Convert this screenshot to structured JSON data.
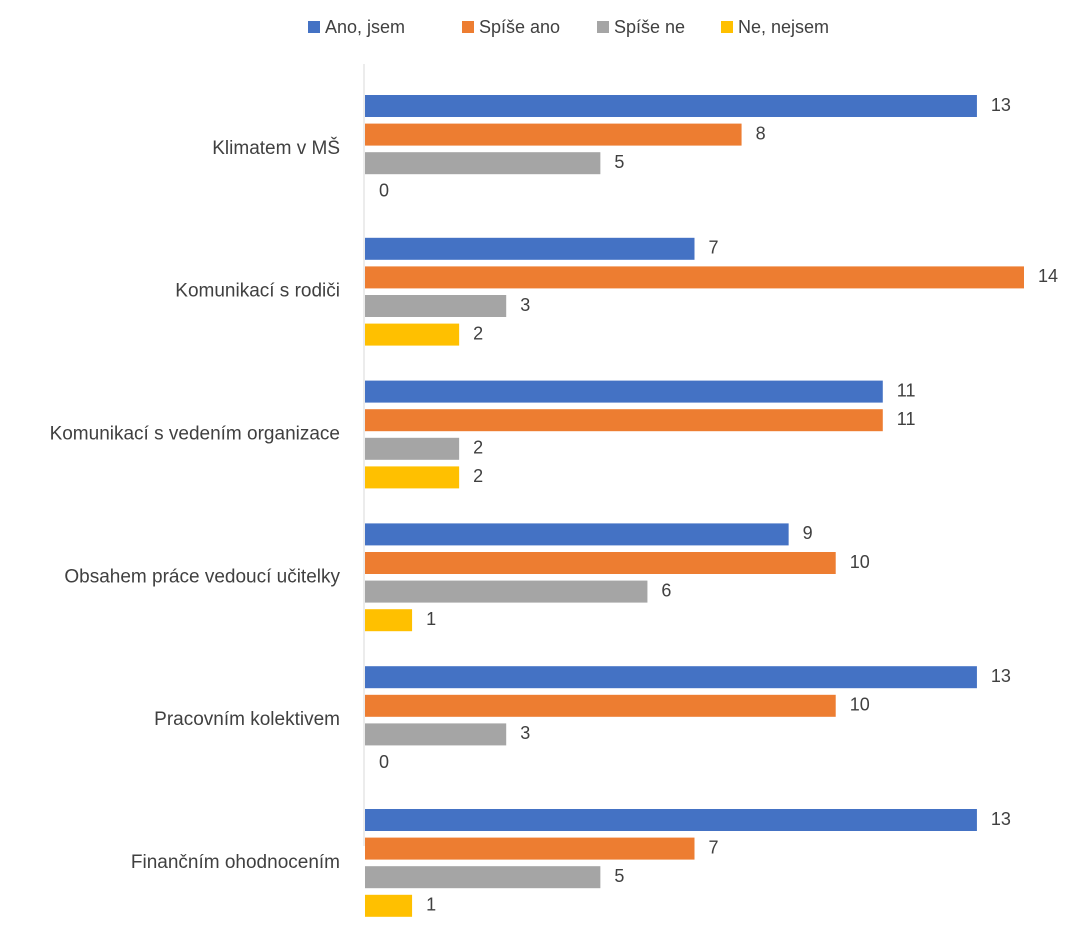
{
  "chart_data": {
    "type": "bar",
    "orientation": "horizontal",
    "categories": [
      "Klimatem v MŠ",
      "Komunikací s rodiči",
      "Komunikací s vedením organizace",
      "Obsahem práce vedoucí učitelky",
      "Pracovním kolektivem",
      "Finančním ohodnocením"
    ],
    "series": [
      {
        "name": "Ano, jsem",
        "color": "#4472C4",
        "values": [
          13,
          7,
          11,
          9,
          13,
          13
        ]
      },
      {
        "name": "Spíše ano",
        "color": "#ED7D31",
        "values": [
          8,
          14,
          11,
          10,
          10,
          7
        ]
      },
      {
        "name": "Spíše ne",
        "color": "#A5A5A5",
        "values": [
          5,
          3,
          2,
          6,
          3,
          5
        ]
      },
      {
        "name": "Ne, nejsem",
        "color": "#FFC000",
        "values": [
          0,
          2,
          2,
          1,
          0,
          1
        ]
      }
    ],
    "xlim": [
      0,
      14
    ],
    "legend_position": "top",
    "data_labels": true,
    "grid": false
  }
}
